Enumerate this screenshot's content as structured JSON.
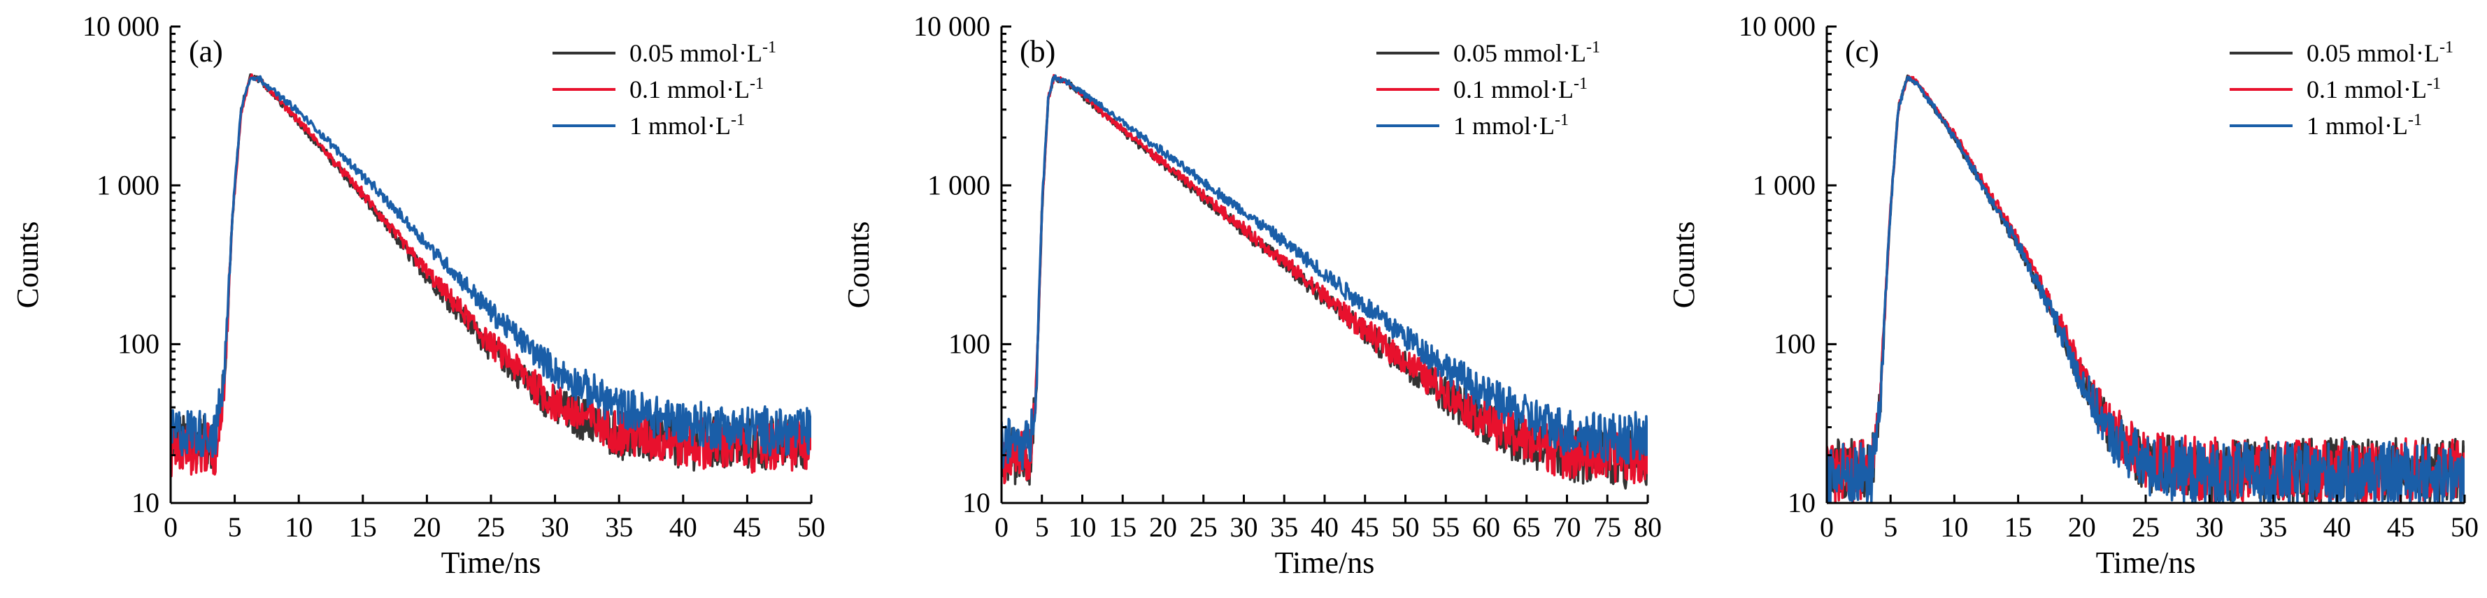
{
  "chart_data": [
    {
      "type": "line",
      "panel_label": "(a)",
      "xlabel": "Time/ns",
      "ylabel": "Counts",
      "yscale": "log",
      "ylim": [
        10,
        10000
      ],
      "xlim": [
        0,
        50
      ],
      "xticks": [
        0,
        5,
        10,
        15,
        20,
        25,
        30,
        35,
        40,
        45,
        50
      ],
      "yticks": [
        10,
        100,
        1000,
        10000
      ],
      "ytick_labels": [
        "10",
        "100",
        "1 000",
        "10 000"
      ],
      "legend_position": "top-right",
      "series": [
        {
          "name": "0.05 mmol·L",
          "superscript": "-1",
          "color": "#333333",
          "points": [
            [
              0,
              25
            ],
            [
              2,
              25
            ],
            [
              3.5,
              24
            ],
            [
              4.2,
              60
            ],
            [
              4.8,
              600
            ],
            [
              5.5,
              3000
            ],
            [
              6.2,
              4800
            ],
            [
              7,
              4600
            ],
            [
              10,
              2500
            ],
            [
              15,
              850
            ],
            [
              20,
              270
            ],
            [
              25,
              95
            ],
            [
              30,
              40
            ],
            [
              35,
              27
            ],
            [
              40,
              24
            ],
            [
              45,
              23
            ],
            [
              50,
              24
            ]
          ]
        },
        {
          "name": "0.1 mmol·L",
          "superscript": "-1",
          "color": "#e8112d",
          "points": [
            [
              0,
              22
            ],
            [
              2,
              22
            ],
            [
              3.5,
              22
            ],
            [
              4.2,
              55
            ],
            [
              4.8,
              580
            ],
            [
              5.5,
              2900
            ],
            [
              6.2,
              4800
            ],
            [
              7,
              4600
            ],
            [
              10,
              2550
            ],
            [
              15,
              880
            ],
            [
              20,
              285
            ],
            [
              25,
              100
            ],
            [
              30,
              42
            ],
            [
              35,
              28
            ],
            [
              40,
              24
            ],
            [
              45,
              23
            ],
            [
              50,
              23
            ]
          ]
        },
        {
          "name": "1 mmol·L",
          "superscript": "-1",
          "color": "#1a5ea8",
          "points": [
            [
              0,
              28
            ],
            [
              2,
              28
            ],
            [
              3.5,
              27
            ],
            [
              4.2,
              65
            ],
            [
              4.8,
              620
            ],
            [
              5.5,
              3050
            ],
            [
              6.2,
              4800
            ],
            [
              7,
              4650
            ],
            [
              10,
              2900
            ],
            [
              15,
              1150
            ],
            [
              20,
              430
            ],
            [
              25,
              160
            ],
            [
              30,
              68
            ],
            [
              35,
              40
            ],
            [
              40,
              32
            ],
            [
              45,
              29
            ],
            [
              50,
              28
            ]
          ]
        }
      ]
    },
    {
      "type": "line",
      "panel_label": "(b)",
      "xlabel": "Time/ns",
      "ylabel": "Counts",
      "yscale": "log",
      "ylim": [
        10,
        10000
      ],
      "xlim": [
        0,
        80
      ],
      "xticks": [
        0,
        5,
        10,
        15,
        20,
        25,
        30,
        35,
        40,
        45,
        50,
        55,
        60,
        65,
        70,
        75,
        80
      ],
      "yticks": [
        10,
        100,
        1000,
        10000
      ],
      "ytick_labels": [
        "10",
        "100",
        "1 000",
        "10 000"
      ],
      "legend_position": "top-right",
      "series": [
        {
          "name": "0.05 mmol·L",
          "superscript": "-1",
          "color": "#333333",
          "points": [
            [
              0,
              20
            ],
            [
              2,
              20
            ],
            [
              3.5,
              19
            ],
            [
              4.3,
              50
            ],
            [
              5,
              700
            ],
            [
              5.8,
              3600
            ],
            [
              6.5,
              4800
            ],
            [
              8,
              4500
            ],
            [
              15,
              2200
            ],
            [
              25,
              840
            ],
            [
              35,
              320
            ],
            [
              45,
              118
            ],
            [
              55,
              48
            ],
            [
              60,
              32
            ],
            [
              65,
              24
            ],
            [
              70,
              20
            ],
            [
              75,
              19
            ],
            [
              80,
              19
            ]
          ]
        },
        {
          "name": "0.1 mmol·L",
          "superscript": "-1",
          "color": "#e8112d",
          "points": [
            [
              0,
              20
            ],
            [
              2,
              20
            ],
            [
              3.5,
              19
            ],
            [
              4.3,
              50
            ],
            [
              5,
              690
            ],
            [
              5.8,
              3550
            ],
            [
              6.5,
              4800
            ],
            [
              8,
              4500
            ],
            [
              15,
              2250
            ],
            [
              25,
              860
            ],
            [
              35,
              330
            ],
            [
              45,
              122
            ],
            [
              55,
              50
            ],
            [
              60,
              33
            ],
            [
              65,
              25
            ],
            [
              70,
              21
            ],
            [
              75,
              20
            ],
            [
              80,
              20
            ]
          ]
        },
        {
          "name": "1 mmol·L",
          "superscript": "-1",
          "color": "#1a5ea8",
          "points": [
            [
              0,
              24
            ],
            [
              2,
              24
            ],
            [
              3.5,
              23
            ],
            [
              4.3,
              55
            ],
            [
              5,
              720
            ],
            [
              5.8,
              3650
            ],
            [
              6.5,
              4800
            ],
            [
              8,
              4550
            ],
            [
              15,
              2500
            ],
            [
              25,
              1050
            ],
            [
              35,
              440
            ],
            [
              45,
              175
            ],
            [
              55,
              72
            ],
            [
              60,
              48
            ],
            [
              65,
              35
            ],
            [
              70,
              28
            ],
            [
              75,
              26
            ],
            [
              80,
              25
            ]
          ]
        }
      ]
    },
    {
      "type": "line",
      "panel_label": "(c)",
      "xlabel": "Time/ns",
      "ylabel": "Counts",
      "yscale": "log",
      "ylim": [
        10,
        10000
      ],
      "xlim": [
        0,
        50
      ],
      "xticks": [
        0,
        5,
        10,
        15,
        20,
        25,
        30,
        35,
        40,
        45,
        50
      ],
      "yticks": [
        10,
        100,
        1000,
        10000
      ],
      "ytick_labels": [
        "10",
        "100",
        "1 000",
        "10 000"
      ],
      "legend_position": "top-right",
      "series": [
        {
          "name": "0.05 mmol·L",
          "superscript": "-1",
          "color": "#333333",
          "points": [
            [
              0,
              16
            ],
            [
              2,
              16
            ],
            [
              3.5,
              16
            ],
            [
              4.2,
              45
            ],
            [
              4.9,
              550
            ],
            [
              5.6,
              3000
            ],
            [
              6.3,
              4800
            ],
            [
              7,
              4500
            ],
            [
              10,
              2000
            ],
            [
              15,
              420
            ],
            [
              18,
              140
            ],
            [
              20,
              60
            ],
            [
              22,
              30
            ],
            [
              25,
              18
            ],
            [
              30,
              16
            ],
            [
              40,
              16
            ],
            [
              50,
              16
            ]
          ]
        },
        {
          "name": "0.1 mmol·L",
          "superscript": "-1",
          "color": "#e8112d",
          "points": [
            [
              0,
              16
            ],
            [
              2,
              16
            ],
            [
              3.5,
              16
            ],
            [
              4.2,
              45
            ],
            [
              4.9,
              550
            ],
            [
              5.6,
              3000
            ],
            [
              6.3,
              4800
            ],
            [
              7,
              4550
            ],
            [
              10,
              2100
            ],
            [
              15,
              450
            ],
            [
              18,
              155
            ],
            [
              20,
              65
            ],
            [
              22,
              32
            ],
            [
              25,
              19
            ],
            [
              30,
              16
            ],
            [
              40,
              16
            ],
            [
              50,
              16
            ]
          ]
        },
        {
          "name": "1 mmol·L",
          "superscript": "-1",
          "color": "#1a5ea8",
          "points": [
            [
              0,
              15
            ],
            [
              2,
              15
            ],
            [
              3.5,
              15
            ],
            [
              4.2,
              45
            ],
            [
              4.9,
              550
            ],
            [
              5.6,
              3000
            ],
            [
              6.3,
              4800
            ],
            [
              7,
              4500
            ],
            [
              10,
              2000
            ],
            [
              15,
              420
            ],
            [
              18,
              140
            ],
            [
              20,
              58
            ],
            [
              22,
              28
            ],
            [
              25,
              17
            ],
            [
              30,
              15
            ],
            [
              40,
              15
            ],
            [
              50,
              15
            ]
          ]
        }
      ]
    }
  ]
}
